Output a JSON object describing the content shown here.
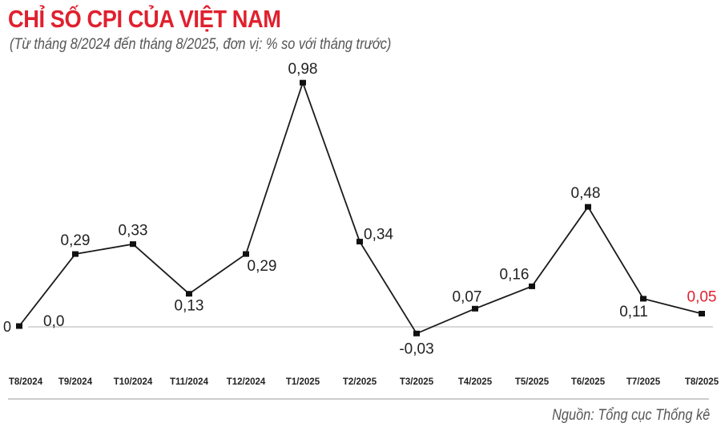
{
  "chart_data": {
    "type": "line",
    "title": "CHỈ SỐ CPI CỦA VIỆT NAM",
    "subtitle": "(Từ tháng 8/2024 đến tháng 8/2025, đơn vị: % so với tháng trước)",
    "categories": [
      "T8/2024",
      "T9/2024",
      "T10/2024",
      "T11/2024",
      "T12/2024",
      "T1/2025",
      "T2/2025",
      "T3/2025",
      "T4/2025",
      "T5/2025",
      "T6/2025",
      "T7/2025",
      "T8/2025"
    ],
    "values": [
      0.0,
      0.29,
      0.33,
      0.13,
      0.29,
      0.98,
      0.34,
      -0.03,
      0.07,
      0.16,
      0.48,
      0.11,
      0.05
    ],
    "data_labels": [
      "0,0",
      "0,29",
      "0,33",
      "0,13",
      "0,29",
      "0,98",
      "0,34",
      "-0,03",
      "0,07",
      "0,16",
      "0,48",
      "0,11",
      "0,05"
    ],
    "zero_label": "0",
    "xlabel": "",
    "ylabel": "",
    "ylim": [
      -0.03,
      0.98
    ],
    "grid": false,
    "line_color": "#1a1a1a",
    "highlight_color": "#e0202e",
    "source": "Nguồn: Tổng cục Thống kê"
  }
}
